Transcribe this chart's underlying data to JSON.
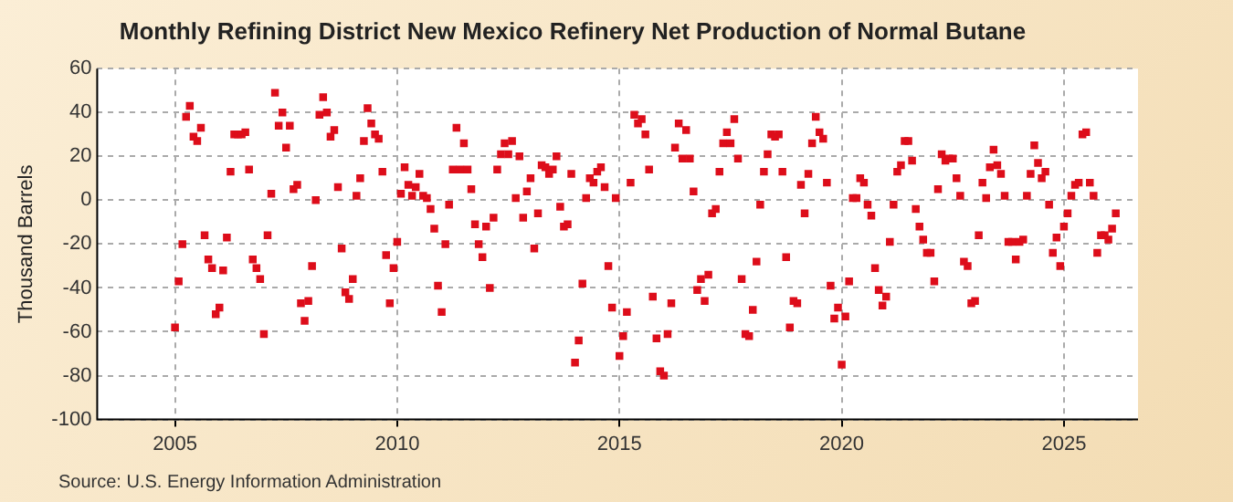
{
  "chart_data": {
    "type": "scatter",
    "title": "Monthly Refining District New Mexico Refinery Net Production of Normal Butane",
    "ylabel": "Thousand Barrels",
    "annotations": [
      "Source: U.S. Energy Information Administration"
    ],
    "x": [
      "2005-01",
      "2005-02",
      "2005-03",
      "2005-04",
      "2005-05",
      "2005-06",
      "2005-07",
      "2005-08",
      "2005-09",
      "2005-10",
      "2005-11",
      "2005-12",
      "2006-01",
      "2006-02",
      "2006-03",
      "2006-04",
      "2006-05",
      "2006-06",
      "2006-07",
      "2006-08",
      "2006-09",
      "2006-10",
      "2006-11",
      "2006-12",
      "2007-01",
      "2007-02",
      "2007-03",
      "2007-04",
      "2007-05",
      "2007-06",
      "2007-07",
      "2007-08",
      "2007-09",
      "2007-10",
      "2007-11",
      "2007-12",
      "2008-01",
      "2008-02",
      "2008-03",
      "2008-04",
      "2008-05",
      "2008-06",
      "2008-07",
      "2008-08",
      "2008-09",
      "2008-10",
      "2008-11",
      "2008-12",
      "2009-01",
      "2009-02",
      "2009-03",
      "2009-04",
      "2009-05",
      "2009-06",
      "2009-07",
      "2009-08",
      "2009-09",
      "2009-10",
      "2009-11",
      "2009-12",
      "2010-01",
      "2010-02",
      "2010-03",
      "2010-04",
      "2010-05",
      "2010-06",
      "2010-07",
      "2010-08",
      "2010-09",
      "2010-10",
      "2010-11",
      "2010-12",
      "2011-01",
      "2011-02",
      "2011-03",
      "2011-04",
      "2011-05",
      "2011-06",
      "2011-07",
      "2011-08",
      "2011-09",
      "2011-10",
      "2011-11",
      "2011-12",
      "2012-01",
      "2012-02",
      "2012-03",
      "2012-04",
      "2012-05",
      "2012-06",
      "2012-07",
      "2012-08",
      "2012-09",
      "2012-10",
      "2012-11",
      "2012-12",
      "2013-01",
      "2013-02",
      "2013-03",
      "2013-04",
      "2013-05",
      "2013-06",
      "2013-07",
      "2013-08",
      "2013-09",
      "2013-10",
      "2013-11",
      "2013-12",
      "2014-01",
      "2014-02",
      "2014-03",
      "2014-04",
      "2014-05",
      "2014-06",
      "2014-07",
      "2014-08",
      "2014-09",
      "2014-10",
      "2014-11",
      "2014-12",
      "2015-01",
      "2015-02",
      "2015-03",
      "2015-04",
      "2015-05",
      "2015-06",
      "2015-07",
      "2015-08",
      "2015-09",
      "2015-10",
      "2015-11",
      "2015-12",
      "2016-01",
      "2016-02",
      "2016-03",
      "2016-04",
      "2016-05",
      "2016-06",
      "2016-07",
      "2016-08",
      "2016-09",
      "2016-10",
      "2016-11",
      "2016-12",
      "2017-01",
      "2017-02",
      "2017-03",
      "2017-04",
      "2017-05",
      "2017-06",
      "2017-07",
      "2017-08",
      "2017-09",
      "2017-10",
      "2017-11",
      "2017-12",
      "2018-01",
      "2018-02",
      "2018-03",
      "2018-04",
      "2018-05",
      "2018-06",
      "2018-07",
      "2018-08",
      "2018-09",
      "2018-10",
      "2018-11",
      "2018-12",
      "2019-01",
      "2019-02",
      "2019-03",
      "2019-04",
      "2019-05",
      "2019-06",
      "2019-07",
      "2019-08",
      "2019-09",
      "2019-10",
      "2019-11",
      "2019-12",
      "2020-01",
      "2020-02",
      "2020-03",
      "2020-04",
      "2020-05",
      "2020-06",
      "2020-07",
      "2020-08",
      "2020-09",
      "2020-10",
      "2020-11",
      "2020-12",
      "2021-01",
      "2021-02",
      "2021-03",
      "2021-04",
      "2021-05",
      "2021-06",
      "2021-07",
      "2021-08",
      "2021-09",
      "2021-10",
      "2021-11",
      "2021-12",
      "2022-01",
      "2022-02",
      "2022-03",
      "2022-04",
      "2022-05",
      "2022-06",
      "2022-07",
      "2022-08",
      "2022-09",
      "2022-10",
      "2022-11",
      "2022-12",
      "2023-01",
      "2023-02",
      "2023-03",
      "2023-04",
      "2023-05",
      "2023-06",
      "2023-07",
      "2023-08",
      "2023-09",
      "2023-10",
      "2023-11",
      "2023-12",
      "2024-01",
      "2024-02",
      "2024-03",
      "2024-04",
      "2024-05",
      "2024-06",
      "2024-07",
      "2024-08",
      "2024-09",
      "2024-10",
      "2024-11",
      "2024-12",
      "2025-01",
      "2025-02",
      "2025-03",
      "2025-04",
      "2025-05",
      "2025-06",
      "2025-07",
      "2025-08",
      "2025-09",
      "2025-10",
      "2025-11",
      "2025-12",
      "2026-01",
      "2026-02",
      "2026-03"
    ],
    "series": [
      {
        "color": "#dd0d1a",
        "values": [
          -58,
          -37,
          -20,
          38,
          43,
          29,
          27,
          33,
          -16,
          -27,
          -31,
          -52,
          -49,
          -32,
          -17,
          13,
          30,
          30,
          30,
          31,
          14,
          -27,
          -31,
          -36,
          -61,
          -16,
          3,
          49,
          34,
          40,
          24,
          34,
          5,
          7,
          -47,
          -55,
          -46,
          -30,
          0,
          39,
          47,
          40,
          29,
          32,
          6,
          -22,
          -42,
          -45,
          -36,
          2,
          10,
          27,
          42,
          35,
          30,
          28,
          13,
          -25,
          -47,
          -31,
          -19,
          3,
          15,
          7,
          2,
          6,
          12,
          2,
          1,
          -4,
          -13,
          -39,
          -51,
          -20,
          -2,
          14,
          33,
          14,
          26,
          14,
          5,
          -11,
          -20,
          -26,
          -12,
          -40,
          -8,
          14,
          21,
          26,
          21,
          27,
          1,
          20,
          -8,
          4,
          10,
          -22,
          -6,
          16,
          15,
          12,
          14,
          20,
          -3,
          -12,
          -11,
          12,
          -74,
          -64,
          -38,
          1,
          10,
          8,
          13,
          15,
          6,
          -30,
          -49,
          1,
          -71,
          -62,
          -51,
          8,
          39,
          35,
          37,
          30,
          14,
          -44,
          -63,
          -78,
          -80,
          -61,
          -47,
          24,
          35,
          19,
          32,
          19,
          4,
          -41,
          -36,
          -46,
          -34,
          -6,
          -4,
          13,
          26,
          31,
          26,
          37,
          19,
          -36,
          -61,
          -62,
          -50,
          -28,
          -2,
          13,
          21,
          30,
          29,
          30,
          13,
          -26,
          -58,
          -46,
          -47,
          7,
          -6,
          12,
          26,
          38,
          31,
          28,
          8,
          -39,
          -54,
          -49,
          -75,
          -53,
          -37,
          1,
          1,
          10,
          8,
          -2,
          -7,
          -31,
          -41,
          -48,
          -44,
          -19,
          -2,
          13,
          16,
          27,
          27,
          18,
          -4,
          -12,
          -18,
          -24,
          -24,
          -37,
          5,
          21,
          18,
          19,
          19,
          10,
          2,
          -28,
          -30,
          -47,
          -46,
          -16,
          8,
          1,
          15,
          23,
          16,
          12,
          2,
          -19,
          -19,
          -27,
          -19,
          -18,
          2,
          12,
          25,
          17,
          10,
          13,
          -2,
          -24,
          -17,
          -30,
          -12,
          -6,
          2,
          7,
          8,
          30,
          31,
          8,
          2,
          -24,
          -16,
          -16,
          -18,
          -13,
          -6
        ]
      }
    ],
    "xlim": [
      "2003-04",
      "2026-09"
    ],
    "xticks": [
      {
        "value": "2005",
        "label": "2005"
      },
      {
        "value": "2010",
        "label": "2010"
      },
      {
        "value": "2015",
        "label": "2015"
      },
      {
        "value": "2020",
        "label": "2020"
      },
      {
        "value": "2025",
        "label": "2025"
      }
    ],
    "ylim": [
      -100,
      60
    ],
    "yticks": [
      -100,
      -80,
      -60,
      -40,
      -20,
      0,
      20,
      40,
      60
    ],
    "grid": true,
    "marker": "square",
    "legend": false
  }
}
